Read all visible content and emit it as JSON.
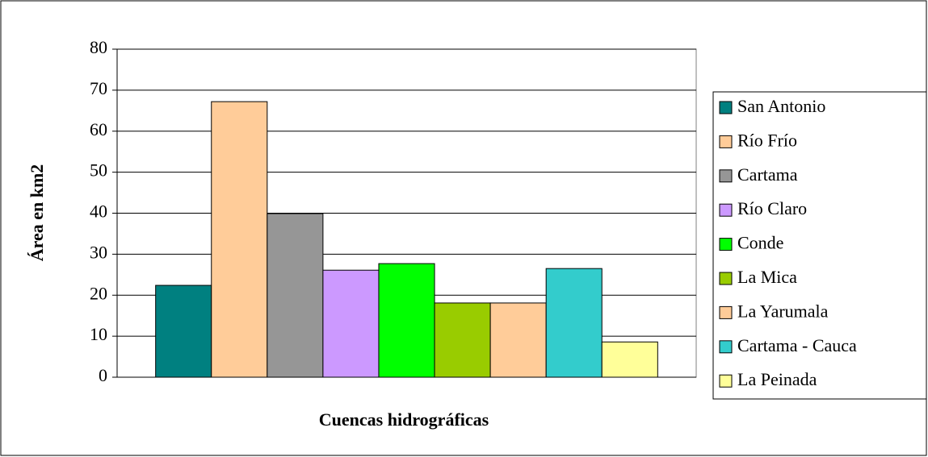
{
  "chart_data": {
    "type": "bar",
    "x_label": "Cuencas hidrográficas",
    "y_label": "Área en km2",
    "categories": [
      null
    ],
    "series": [
      {
        "name": "San Antonio",
        "color": "#008080",
        "values": [
          22.4
        ]
      },
      {
        "name": "Río Frío",
        "color": "#ffcc99",
        "values": [
          67.2
        ]
      },
      {
        "name": "Cartama",
        "color": "#969696",
        "values": [
          39.9
        ]
      },
      {
        "name": "Río Claro",
        "color": "#cc99ff",
        "values": [
          26.1
        ]
      },
      {
        "name": "Conde",
        "color": "#00ff00",
        "values": [
          27.7
        ]
      },
      {
        "name": "La Mica",
        "color": "#99cc00",
        "values": [
          18.1
        ]
      },
      {
        "name": "La Yarumala",
        "color": "#ffcc99",
        "values": [
          18.1
        ]
      },
      {
        "name": "Cartama - Cauca",
        "color": "#33cccc",
        "values": [
          26.5
        ]
      },
      {
        "name": "La Peinada",
        "color": "#ffff99",
        "values": [
          8.6
        ]
      }
    ],
    "ylim": [
      0,
      80
    ],
    "yticks": [
      0,
      10,
      20,
      30,
      40,
      50,
      60,
      70,
      80
    ],
    "grid": true,
    "legend": "right"
  }
}
